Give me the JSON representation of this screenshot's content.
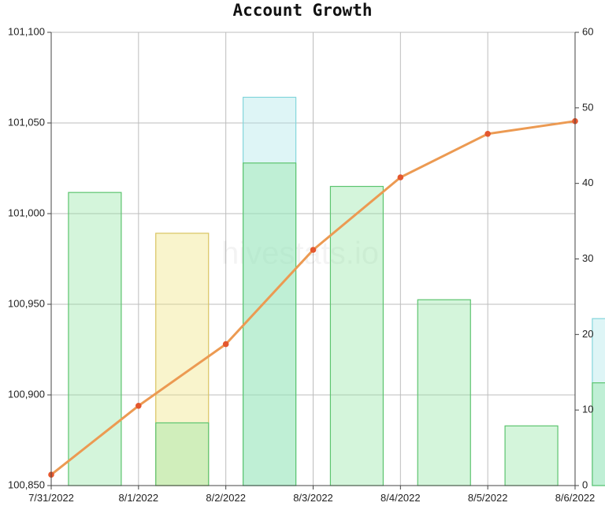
{
  "chart_data": {
    "type": "bar+line",
    "title": "Account Growth",
    "watermark": "hivestats.io",
    "x": [
      "7/31/2022",
      "8/1/2022",
      "8/2/2022",
      "8/3/2022",
      "8/4/2022",
      "8/5/2022",
      "8/6/2022"
    ],
    "y_left": {
      "min": 100850,
      "max": 101100,
      "ticks": [
        "100,850",
        "100,900",
        "100,950",
        "101,000",
        "101,050",
        "101,100"
      ],
      "tick_values": [
        100850,
        100900,
        100950,
        101000,
        101050,
        101100
      ]
    },
    "y_right": {
      "min": 0,
      "max": 60,
      "ticks": [
        "0",
        "10",
        "20",
        "30",
        "40",
        "50",
        "60"
      ],
      "tick_values": [
        0,
        10,
        20,
        30,
        40,
        50,
        60
      ]
    },
    "bar_series": [
      {
        "axis": "right",
        "color": "#8ee6a0",
        "bars": [
          {
            "date": "7/31/2022",
            "value": 38.8
          },
          {
            "date": "8/1/2022",
            "value": 8.3
          },
          {
            "date": "8/2/2022",
            "value": 42.7
          },
          {
            "date": "8/3/2022",
            "value": 39.6
          },
          {
            "date": "8/4/2022",
            "value": 24.6
          },
          {
            "date": "8/5/2022",
            "value": 7.9
          },
          {
            "date": "8/6/2022",
            "value": 13.6
          }
        ]
      },
      {
        "axis": "right",
        "color": "#f0e27a",
        "bars": [
          {
            "date": "8/1/2022",
            "value": 33.4
          }
        ]
      },
      {
        "axis": "right",
        "color": "#a9e4e8",
        "bars": [
          {
            "date": "8/2/2022",
            "value": 51.4
          },
          {
            "date": "8/6/2022",
            "value": 22.1
          }
        ]
      }
    ],
    "line_series": {
      "axis": "left",
      "color": "#ec9a52",
      "marker_color": "#e4572e",
      "values": [
        100856,
        100894,
        100928,
        100980,
        101020,
        101044,
        101051
      ]
    },
    "grid": true
  }
}
